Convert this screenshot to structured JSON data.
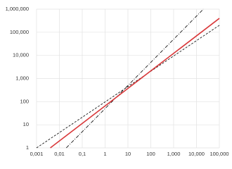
{
  "chart_data": {
    "type": "line",
    "xscale": "log",
    "yscale": "log",
    "grid": true,
    "xlim": [
      0.001,
      100000
    ],
    "ylim": [
      1,
      1000000
    ],
    "xticks": [
      {
        "value": 0.001,
        "label": "0,001"
      },
      {
        "value": 0.01,
        "label": "0,01"
      },
      {
        "value": 0.1,
        "label": "0,1"
      },
      1,
      10,
      100,
      {
        "value": 1000,
        "label": "1,000"
      },
      {
        "value": 10000,
        "label": "10,000"
      },
      {
        "value": 100000,
        "label": "100,000"
      }
    ],
    "yticks": [
      1,
      10,
      100,
      {
        "value": 1000,
        "label": "1,000"
      },
      {
        "value": 10000,
        "label": "10,000"
      },
      {
        "value": 100000,
        "label": "100,000"
      },
      {
        "value": 1000000,
        "label": "1,000,000"
      }
    ],
    "series": [
      {
        "color": "#000000",
        "dash": "dashed",
        "x": [
          0.001,
          100000
        ],
        "values": [
          1,
          200000
        ]
      },
      {
        "color": "#000000",
        "dash": "dashdot",
        "x": [
          0.02,
          20000
        ],
        "values": [
          1,
          1000000
        ]
      },
      {
        "color": "#d9383a",
        "dash": "solid",
        "x": [
          0.004,
          100000
        ],
        "values": [
          1,
          400000
        ]
      }
    ]
  }
}
